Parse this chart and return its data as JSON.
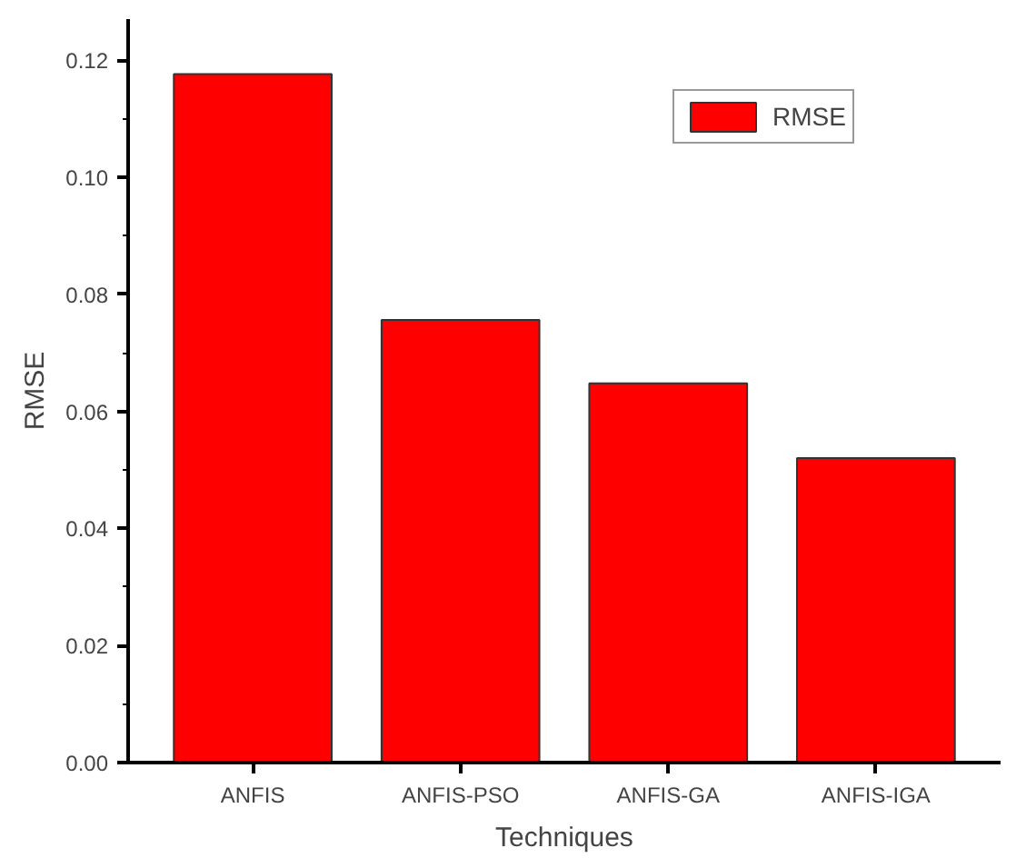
{
  "chart_data": {
    "type": "bar",
    "xlabel": "Techniques",
    "ylabel": "RMSE",
    "categories": [
      "ANFIS",
      "ANFIS-PSO",
      "ANFIS-GA",
      "ANFIS-IGA"
    ],
    "series": [
      {
        "name": "RMSE",
        "color": "#ff0000",
        "values": [
          0.1176,
          0.0756,
          0.0648,
          0.052
        ]
      }
    ],
    "ylim": [
      0,
      0.127
    ],
    "yticks": [
      {
        "value": 0,
        "label": "0.00"
      },
      {
        "value": 0.02,
        "label": "0.02"
      },
      {
        "value": 0.04,
        "label": "0.04"
      },
      {
        "value": 0.06,
        "label": "0.06"
      },
      {
        "value": 0.08,
        "label": "0.08"
      },
      {
        "value": 0.1,
        "label": "0.10"
      },
      {
        "value": 0.12,
        "label": "0.12"
      }
    ],
    "grid": false,
    "legend": "top right"
  }
}
